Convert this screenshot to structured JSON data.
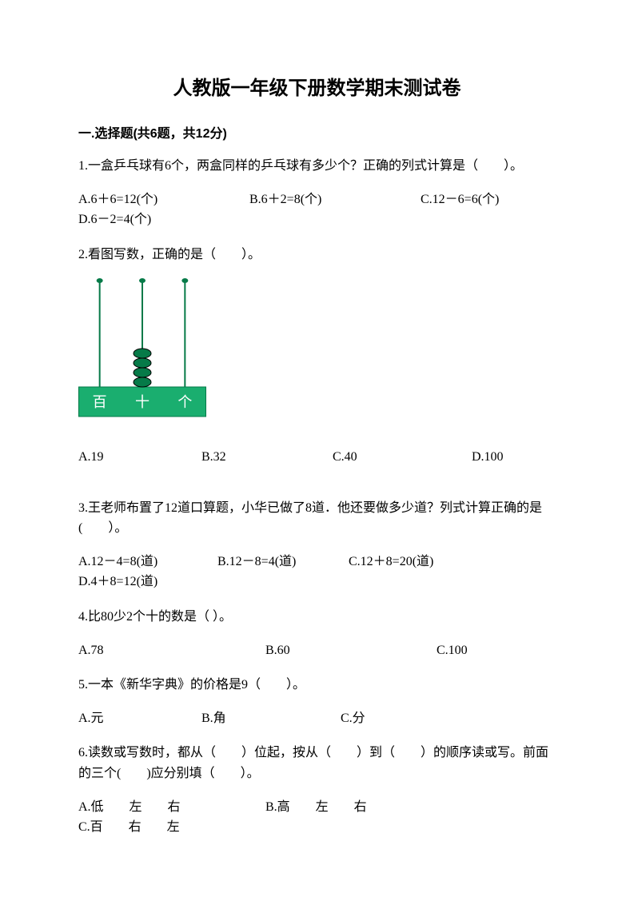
{
  "title": "人教版一年级下册数学期末测试卷",
  "section": {
    "label": "一.选择题(共6题，共12分)"
  },
  "q1": {
    "text": "1.一盒乒乓球有6个，两盒同样的乒乓球有多少个？正确的列式计算是（　　）。",
    "a": "A.6＋6=12(个)",
    "b": "B.6＋2=8(个)",
    "c": "C.12－6=6(个)",
    "d": "D.6－2=4(个)"
  },
  "q2": {
    "text": "2.看图写数，正确的是（　　）。",
    "a": "A.19",
    "b": "B.32",
    "c": "C.40",
    "d": "D.100"
  },
  "q3": {
    "text": "3.王老师布置了12道口算题，小华已做了8道．他还要做多少道？列式计算正确的是(　　）。",
    "a": "A.12－4=8(道)",
    "b": "B.12－8=4(道)",
    "c": "C.12＋8=20(道)",
    "d": "D.4＋8=12(道)"
  },
  "q4": {
    "text": "4.比80少2个十的数是（ ）。",
    "a": "A.78",
    "b": "B.60",
    "c": "C.100"
  },
  "q5": {
    "text": "5.一本《新华字典》的价格是9（　　）。",
    "a": "A.元",
    "b": "B.角",
    "c": "C.分"
  },
  "q6": {
    "text": "6.读数或写数时，都从（　　）位起，按从（　　）到（　　）的顺序读或写。前面的三个(　　)应分别填（　　）。",
    "a": "A.低　　左　　右",
    "b": "B.高　　左　　右",
    "c": "C.百　　右　　左"
  },
  "abacus": {
    "base_color": "#1aae6f",
    "border_color": "#067a48",
    "rod_color": "#067a48",
    "bead_fill": "#067a48",
    "bead_stroke": "#000000",
    "label_bai": "百",
    "label_shi": "十",
    "label_ge": "个",
    "label_color": "#ffffff",
    "beads": {
      "bai": 0,
      "shi": 4,
      "ge": 0
    },
    "width": 160,
    "height": 175,
    "base_height": 38,
    "rod_height": 133,
    "bead_rx": 11,
    "bead_ry": 6
  }
}
